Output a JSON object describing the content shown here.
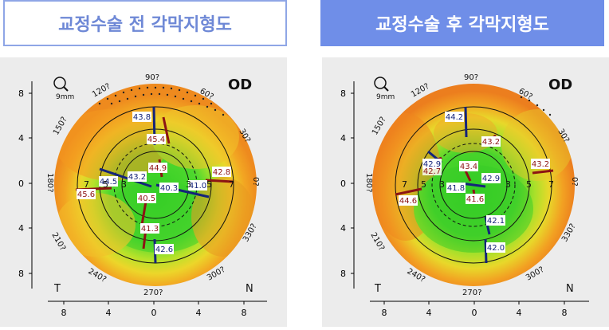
{
  "titles": {
    "before": "교정수술 전 각막지형도",
    "after": "교정수술 후 각막지형도"
  },
  "colors": {
    "title_before_text": "#6e88d6",
    "title_before_border": "#8fa6e6",
    "title_after_bg": "#6f8ee8",
    "panel_bg": "#ececec",
    "flat_green": "#3fd02a",
    "steep_orange": "#f08a1e",
    "mid_yellow": "#e8e02a",
    "flat_axis_blue": "#14247a",
    "steep_axis_red": "#8c1414"
  },
  "maps": [
    {
      "key": "before",
      "eye_label": "OD",
      "zoom_label": "9mm",
      "zoom_icon": "magnifier-icon",
      "left_label": "T",
      "right_label": "N",
      "angle_labels": [
        "90?",
        "60?",
        "30?",
        "0?",
        "330?",
        "300?",
        "270?",
        "240?",
        "210?",
        "180?",
        "150?",
        "120?"
      ],
      "y_ticks": [
        "8",
        "4",
        "0",
        "4",
        "8"
      ],
      "x_ticks": [
        "8",
        "4",
        "0",
        "4",
        "8"
      ],
      "ring_labels_left": [
        "7",
        "5",
        "3"
      ],
      "ring_labels_right": [
        "3",
        "5",
        "7"
      ],
      "readings": [
        {
          "value": "43.8",
          "kind": "flat"
        },
        {
          "value": "45.4",
          "kind": "steep"
        },
        {
          "value": "44.9",
          "kind": "steep"
        },
        {
          "value": "42.8",
          "kind": "steep"
        },
        {
          "value": "44.5",
          "kind": "flat"
        },
        {
          "value": "43.2",
          "kind": "flat"
        },
        {
          "value": "40.3",
          "kind": "flat"
        },
        {
          "value": "41.0",
          "kind": "flat"
        },
        {
          "value": "45.6",
          "kind": "steep"
        },
        {
          "value": "40.5",
          "kind": "steep"
        },
        {
          "value": "41.3",
          "kind": "steep"
        },
        {
          "value": "42.6",
          "kind": "flat"
        }
      ]
    },
    {
      "key": "after",
      "eye_label": "OD",
      "zoom_label": "9mm",
      "zoom_icon": "magnifier-icon",
      "left_label": "T",
      "right_label": "N",
      "angle_labels": [
        "90?",
        "60?",
        "30?",
        "0?",
        "330?",
        "300?",
        "270?",
        "240?",
        "210?",
        "180?",
        "150?",
        "120?"
      ],
      "y_ticks": [
        "8",
        "4",
        "0",
        "4",
        "8"
      ],
      "x_ticks": [
        "8",
        "4",
        "0",
        "4",
        "8"
      ],
      "ring_labels_left": [
        "7",
        "5",
        "3"
      ],
      "ring_labels_right": [
        "3",
        "5",
        "7"
      ],
      "readings": [
        {
          "value": "44.2",
          "kind": "flat"
        },
        {
          "value": "43.2",
          "kind": "steep"
        },
        {
          "value": "42.9",
          "kind": "flat"
        },
        {
          "value": "42.7",
          "kind": "steep"
        },
        {
          "value": "43.4",
          "kind": "steep"
        },
        {
          "value": "42.9",
          "kind": "flat"
        },
        {
          "value": "43.2",
          "kind": "steep"
        },
        {
          "value": "41.8",
          "kind": "flat"
        },
        {
          "value": "41.6",
          "kind": "steep"
        },
        {
          "value": "44.6",
          "kind": "steep"
        },
        {
          "value": "42.1",
          "kind": "flat"
        },
        {
          "value": "42.0",
          "kind": "flat"
        }
      ]
    }
  ]
}
